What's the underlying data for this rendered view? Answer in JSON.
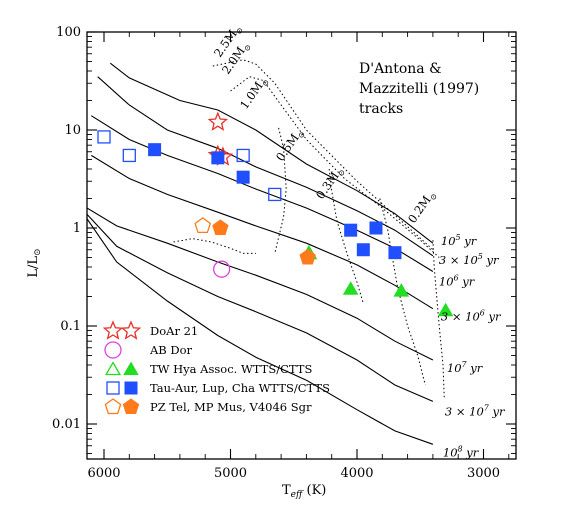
{
  "chart_data": {
    "type": "scatter",
    "title": [
      "D'Antona &",
      "Mazzitelli (1997)",
      "tracks"
    ],
    "xlabel": "T",
    "xlabel_sub": "eff",
    "xlabel_unit": " (K)",
    "ylabel": "L/L",
    "ylabel_sun": "⊙",
    "x_axis": {
      "direction": "reversed",
      "xlim": [
        6200,
        2700
      ],
      "ticks": [
        6000,
        5000,
        4000,
        3000
      ],
      "tick_labels": [
        "6000",
        "5000",
        "4000",
        "3000"
      ]
    },
    "y_axis": {
      "scale": "log",
      "ylim": [
        0.003,
        100
      ],
      "ticks": [
        0.01,
        0.1,
        1,
        10,
        100
      ],
      "tick_labels": [
        "0.01",
        "0.1",
        "1",
        "10",
        "100"
      ]
    },
    "mass_tracks": [
      {
        "label": "2.5M",
        "sun": "⊙",
        "points": [
          [
            5140,
            45
          ],
          [
            4900,
            52
          ],
          [
            4800,
            47
          ],
          [
            4650,
            30
          ],
          [
            4400,
            10
          ],
          [
            4000,
            3.0
          ],
          [
            3700,
            1.35
          ],
          [
            3400,
            0.6
          ]
        ]
      },
      {
        "label": "2.0M",
        "sun": "⊙",
        "points": [
          [
            5000,
            25
          ],
          [
            4850,
            35
          ],
          [
            4740,
            32
          ],
          [
            4600,
            18
          ],
          [
            4400,
            8.0
          ],
          [
            4100,
            3.2
          ],
          [
            3800,
            1.6
          ],
          [
            3500,
            0.75
          ],
          [
            3350,
            0.5
          ]
        ]
      },
      {
        "label": "1.0M",
        "sun": "⊙",
        "points": [
          [
            4620,
            10.5
          ],
          [
            4580,
            6.5
          ],
          [
            4560,
            2.5
          ],
          [
            4580,
            1.3
          ],
          [
            4620,
            0.8
          ],
          [
            4650,
            0.55
          ]
        ]
      },
      {
        "label": "0.5M",
        "sun": "⊙",
        "points": [
          [
            4220,
            4.0
          ],
          [
            4200,
            2.4
          ],
          [
            4160,
            1.2
          ],
          [
            4080,
            0.55
          ],
          [
            4000,
            0.28
          ],
          [
            3950,
            0.17
          ]
        ]
      },
      {
        "label": "0.3M",
        "sun": "⊙",
        "points": [
          [
            3820,
            2.0
          ],
          [
            3760,
            1.0
          ],
          [
            3720,
            0.5
          ],
          [
            3680,
            0.25
          ],
          [
            3600,
            0.1
          ],
          [
            3520,
            0.05
          ],
          [
            3460,
            0.025
          ]
        ]
      },
      {
        "label": "0.2M",
        "sun": "⊙",
        "points": [
          [
            3400,
            0.75
          ],
          [
            3390,
            0.4
          ],
          [
            3370,
            0.2
          ],
          [
            3350,
            0.1
          ],
          [
            3320,
            0.04
          ],
          [
            3310,
            0.018
          ]
        ]
      }
    ],
    "isochrones": [
      {
        "label": "10",
        "exp": "5",
        "unit": "yr",
        "points": [
          [
            5950,
            48
          ],
          [
            5800,
            34
          ],
          [
            5400,
            20
          ],
          [
            5100,
            16
          ],
          [
            4800,
            10
          ],
          [
            4400,
            4.5
          ],
          [
            4000,
            2.4
          ],
          [
            3700,
            1.4
          ],
          [
            3400,
            0.7
          ]
        ]
      },
      {
        "label": "3 × 10",
        "exp": "5",
        "unit": "yr",
        "points": [
          [
            6050,
            35
          ],
          [
            5800,
            18
          ],
          [
            5500,
            10
          ],
          [
            5100,
            6.5
          ],
          [
            4800,
            4.2
          ],
          [
            4400,
            2.6
          ],
          [
            4000,
            1.5
          ],
          [
            3700,
            0.95
          ],
          [
            3400,
            0.52
          ]
        ]
      },
      {
        "label": "10",
        "exp": "6",
        "unit": "yr",
        "points": [
          [
            6100,
            14
          ],
          [
            5800,
            8.0
          ],
          [
            5500,
            5.5
          ],
          [
            5100,
            3.6
          ],
          [
            4800,
            2.5
          ],
          [
            4400,
            1.6
          ],
          [
            4000,
            0.95
          ],
          [
            3700,
            0.62
          ],
          [
            3400,
            0.36
          ]
        ]
      },
      {
        "label": "3 × 10",
        "exp": "6",
        "unit": "yr",
        "points": [
          [
            6100,
            5.5
          ],
          [
            5800,
            3.2
          ],
          [
            5500,
            2.2
          ],
          [
            5100,
            1.45
          ],
          [
            4800,
            1.05
          ],
          [
            4400,
            0.7
          ],
          [
            4000,
            0.42
          ],
          [
            3700,
            0.26
          ],
          [
            3400,
            0.15
          ]
        ]
      },
      {
        "label": "10",
        "exp": "7",
        "unit": "yr",
        "points": [
          [
            6200,
            1.8
          ],
          [
            5900,
            1.05
          ],
          [
            5500,
            0.7
          ],
          [
            5100,
            0.45
          ],
          [
            4800,
            0.33
          ],
          [
            4400,
            0.21
          ],
          [
            4000,
            0.12
          ],
          [
            3700,
            0.07
          ],
          [
            3400,
            0.045
          ]
        ]
      },
      {
        "label": "3 × 10",
        "exp": "7",
        "unit": "yr",
        "points": [
          [
            6200,
            1.7
          ],
          [
            5900,
            0.65
          ],
          [
            5500,
            0.35
          ],
          [
            5100,
            0.2
          ],
          [
            4800,
            0.14
          ],
          [
            4400,
            0.085
          ],
          [
            4000,
            0.045
          ],
          [
            3700,
            0.025
          ],
          [
            3400,
            0.017
          ]
        ]
      },
      {
        "label": "10",
        "exp": "8",
        "unit": "yr",
        "points": [
          [
            6200,
            1.65
          ],
          [
            5900,
            0.45
          ],
          [
            5500,
            0.18
          ],
          [
            5100,
            0.08
          ],
          [
            4800,
            0.048
          ],
          [
            4400,
            0.028
          ],
          [
            4000,
            0.014
          ],
          [
            3700,
            0.0085
          ],
          [
            3400,
            0.0062
          ]
        ]
      }
    ],
    "extra_dotted_curve": [
      [
        5450,
        0.72
      ],
      [
        5300,
        0.78
      ],
      [
        5150,
        0.72
      ],
      [
        5000,
        0.62
      ],
      [
        4900,
        0.55
      ],
      [
        4800,
        0.55
      ]
    ],
    "series": [
      {
        "name": "DoAr 21",
        "marker": "star",
        "color": "#e8302a",
        "points": [
          [
            5100,
            12,
            "open"
          ],
          [
            5100,
            5.5,
            "open"
          ],
          [
            5060,
            5.3,
            "open"
          ]
        ]
      },
      {
        "name": "AB Dor",
        "marker": "circle",
        "color": "#e040e0",
        "points": [
          [
            5070,
            0.38,
            "open"
          ]
        ]
      },
      {
        "name": "TW Hya Assoc. WTTS/CTTS",
        "marker": "triangle",
        "color": "#22dd22",
        "points": [
          [
            4380,
            0.56,
            "open"
          ],
          [
            4380,
            0.55,
            "filled"
          ],
          [
            4050,
            0.24,
            "filled"
          ],
          [
            3650,
            0.23,
            "filled"
          ],
          [
            3300,
            0.145,
            "filled"
          ]
        ]
      },
      {
        "name": "Tau-Aur, Lup, Cha WTTS/CTTS",
        "marker": "square",
        "color": "#1f4fff",
        "points": [
          [
            6000,
            8.5,
            "open"
          ],
          [
            5800,
            5.5,
            "open"
          ],
          [
            4900,
            5.5,
            "open"
          ],
          [
            4650,
            2.2,
            "open"
          ],
          [
            5600,
            6.3,
            "filled"
          ],
          [
            5100,
            5.2,
            "filled"
          ],
          [
            4900,
            3.3,
            "filled"
          ],
          [
            4050,
            0.95,
            "filled"
          ],
          [
            3950,
            0.6,
            "filled"
          ],
          [
            3850,
            1.0,
            "filled"
          ],
          [
            3700,
            0.56,
            "filled"
          ]
        ]
      },
      {
        "name": "PZ Tel, MP Mus, V4046 Sgr",
        "marker": "pentagon",
        "color": "#ff7a1a",
        "points": [
          [
            5220,
            1.05,
            "open"
          ],
          [
            5080,
            1.0,
            "filled"
          ],
          [
            4390,
            0.5,
            "filled"
          ]
        ]
      }
    ],
    "legend_placement": "bottom-left"
  }
}
